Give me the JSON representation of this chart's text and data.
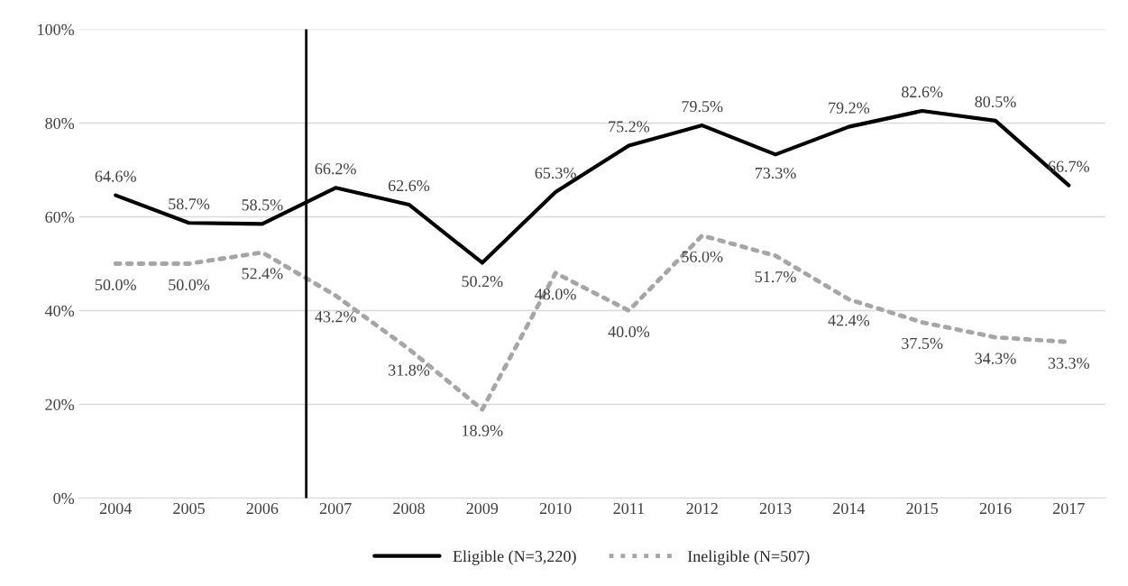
{
  "chart_data": {
    "type": "line",
    "x": [
      2004,
      2005,
      2006,
      2007,
      2008,
      2009,
      2010,
      2011,
      2012,
      2013,
      2014,
      2015,
      2016,
      2017
    ],
    "xlim": [
      2003.5,
      2017.5
    ],
    "xticks": [
      2004,
      2005,
      2006,
      2007,
      2008,
      2009,
      2010,
      2011,
      2012,
      2013,
      2014,
      2015,
      2016,
      2017
    ],
    "ylim": [
      0,
      100
    ],
    "yticks": [
      {
        "value": 0,
        "label": "0%"
      },
      {
        "value": 20,
        "label": "20%"
      },
      {
        "value": 40,
        "label": "40%"
      },
      {
        "value": 60,
        "label": "60%"
      },
      {
        "value": 80,
        "label": "80%"
      },
      {
        "value": 100,
        "label": "100%"
      }
    ],
    "series": [
      {
        "name": "Eligible (N=3,220)",
        "color": "#000000",
        "line_style": "solid",
        "values": [
          64.6,
          58.7,
          58.5,
          66.2,
          62.6,
          50.2,
          65.3,
          75.2,
          79.5,
          73.3,
          79.2,
          82.6,
          80.5,
          66.7
        ],
        "value_labels": [
          "64.6%",
          "58.7%",
          "58.5%",
          "66.2%",
          "62.6%",
          "50.2%",
          "65.3%",
          "75.2%",
          "79.5%",
          "73.3%",
          "79.2%",
          "82.6%",
          "80.5%",
          "66.7%"
        ]
      },
      {
        "name": "Ineligible (N=507)",
        "color": "#a6a6a6",
        "line_style": "dotted",
        "values": [
          50.0,
          50.0,
          52.4,
          43.2,
          31.8,
          18.9,
          48.0,
          40.0,
          56.0,
          51.7,
          42.4,
          37.5,
          34.3,
          33.3
        ],
        "value_labels": [
          "50.0%",
          "50.0%",
          "52.4%",
          "43.2%",
          "31.8%",
          "18.9%",
          "48.0%",
          "40.0%",
          "56.0%",
          "51.7%",
          "42.4%",
          "37.5%",
          "34.3%",
          "33.3%"
        ]
      }
    ],
    "ref_lines": [
      {
        "axis": "x",
        "value": 2006.6,
        "color": "#000000",
        "line_style": "solid"
      }
    ],
    "grid": "y",
    "legend": "bottom",
    "marker": "none"
  }
}
